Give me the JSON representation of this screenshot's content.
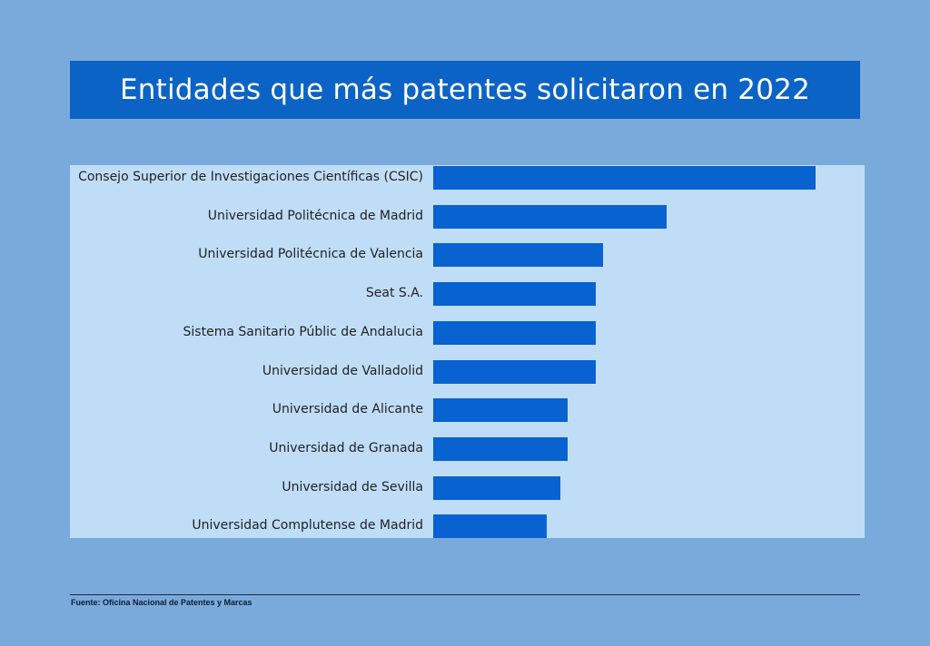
{
  "chart_data": {
    "type": "bar",
    "orientation": "horizontal",
    "title": "Entidades que más patentes solicitaron en 2022",
    "categories": [
      "Consejo Superior de Investigaciones Científicas (CSIC)",
      "Universidad Politécnica de Madrid",
      "Universidad Politécnica de Valencia",
      "Seat S.A.",
      "Sistema Sanitario Públic de Andalucia",
      "Universidad de Valladolid",
      "Universidad de Alicante",
      "Universidad de Granada",
      "Universidad de Sevilla",
      "Universidad Complutense de Madrid"
    ],
    "values": [
      54,
      33,
      24,
      23,
      23,
      23,
      19,
      19,
      18,
      16
    ],
    "xlabel": "",
    "ylabel": "",
    "grid": false,
    "colors": {
      "bar": "#0862d0",
      "background": "#7aaadb",
      "panel": "#c0ddf7",
      "title_box": "#0b63c5"
    }
  },
  "source": "Fuente: Oficina Nacional de Patentes y Marcas"
}
